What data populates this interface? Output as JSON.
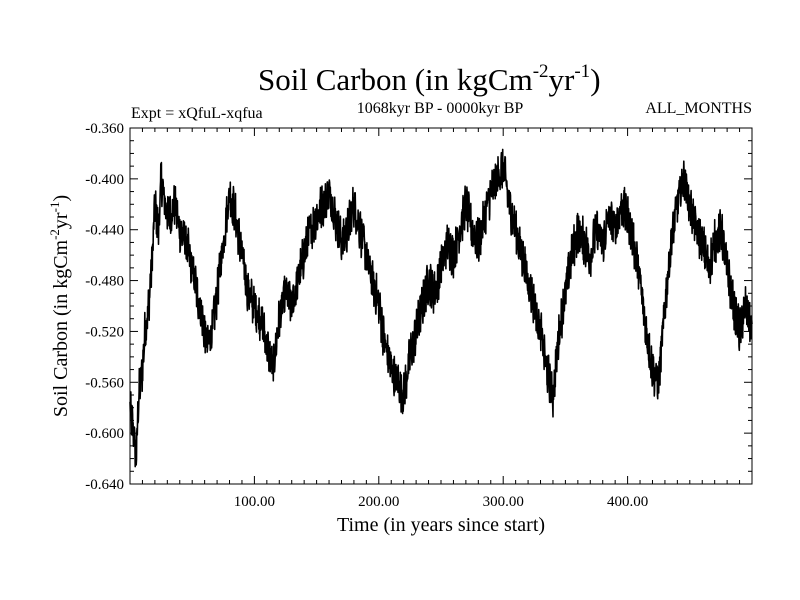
{
  "chart_data": {
    "type": "line",
    "title": "Soil Carbon (in kgCm",
    "title_units": {
      "sup1": "-2",
      "mid": "yr",
      "sup2": "-1",
      "close": ")"
    },
    "experiment": "Expt = xQfuL-xqfua",
    "period": "1068kyr BP - 0000kyr BP",
    "season": "ALL_MONTHS",
    "xlabel": "Time (in years since start)",
    "ylabel": "Soil Carbon (in kgCm",
    "ylabel_units": {
      "sup1": "-2",
      "mid": "yr",
      "sup2": "-1",
      "close": ")"
    },
    "xlim": [
      0,
      500
    ],
    "ylim": [
      -0.64,
      -0.36
    ],
    "x_ticks": [
      100,
      200,
      300,
      400
    ],
    "x_tick_labels": [
      "100.00",
      "200.00",
      "300.00",
      "400.00"
    ],
    "y_ticks": [
      -0.64,
      -0.6,
      -0.56,
      -0.52,
      -0.48,
      -0.44,
      -0.4,
      -0.36
    ],
    "y_tick_labels": [
      "-0.640",
      "-0.600",
      "-0.560",
      "-0.520",
      "-0.480",
      "-0.440",
      "-0.400",
      "-0.360"
    ],
    "series": [
      {
        "color": "#000000",
        "x": [
          0,
          3,
          5,
          7,
          10,
          12,
          15,
          18,
          20,
          23,
          25,
          28,
          32,
          36,
          40,
          45,
          50,
          54,
          58,
          62,
          66,
          70,
          75,
          80,
          85,
          90,
          95,
          100,
          105,
          110,
          115,
          120,
          125,
          130,
          135,
          140,
          145,
          150,
          155,
          160,
          165,
          170,
          175,
          180,
          185,
          190,
          195,
          200,
          205,
          210,
          215,
          220,
          225,
          230,
          235,
          240,
          245,
          250,
          255,
          260,
          265,
          270,
          275,
          280,
          285,
          290,
          295,
          300,
          305,
          310,
          315,
          320,
          325,
          330,
          335,
          340,
          345,
          350,
          355,
          360,
          365,
          370,
          375,
          380,
          385,
          390,
          395,
          400,
          405,
          410,
          415,
          420,
          425,
          430,
          435,
          440,
          445,
          450,
          455,
          460,
          465,
          470,
          475,
          480,
          485,
          490,
          495,
          500
        ],
        "y": [
          -0.58,
          -0.6,
          -0.62,
          -0.57,
          -0.55,
          -0.52,
          -0.5,
          -0.46,
          -0.42,
          -0.44,
          -0.4,
          -0.42,
          -0.43,
          -0.42,
          -0.44,
          -0.45,
          -0.47,
          -0.49,
          -0.51,
          -0.53,
          -0.52,
          -0.49,
          -0.45,
          -0.41,
          -0.43,
          -0.46,
          -0.49,
          -0.5,
          -0.51,
          -0.53,
          -0.55,
          -0.51,
          -0.49,
          -0.5,
          -0.48,
          -0.46,
          -0.44,
          -0.43,
          -0.42,
          -0.41,
          -0.43,
          -0.45,
          -0.44,
          -0.42,
          -0.44,
          -0.46,
          -0.48,
          -0.5,
          -0.53,
          -0.55,
          -0.56,
          -0.57,
          -0.54,
          -0.52,
          -0.5,
          -0.48,
          -0.49,
          -0.47,
          -0.45,
          -0.46,
          -0.44,
          -0.42,
          -0.44,
          -0.45,
          -0.43,
          -0.41,
          -0.4,
          -0.39,
          -0.42,
          -0.44,
          -0.46,
          -0.48,
          -0.5,
          -0.52,
          -0.55,
          -0.57,
          -0.52,
          -0.49,
          -0.46,
          -0.44,
          -0.45,
          -0.46,
          -0.44,
          -0.45,
          -0.43,
          -0.44,
          -0.42,
          -0.43,
          -0.45,
          -0.48,
          -0.52,
          -0.55,
          -0.56,
          -0.5,
          -0.45,
          -0.42,
          -0.4,
          -0.42,
          -0.44,
          -0.45,
          -0.47,
          -0.45,
          -0.44,
          -0.47,
          -0.5,
          -0.52,
          -0.5,
          -0.52
        ]
      }
    ]
  }
}
